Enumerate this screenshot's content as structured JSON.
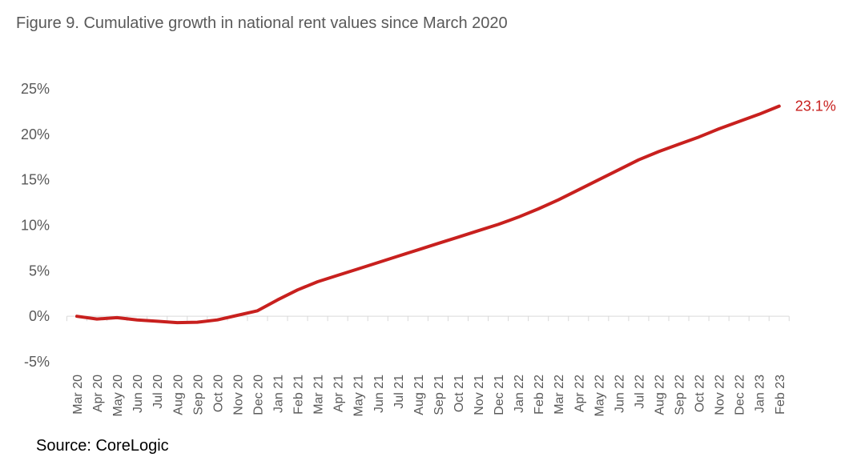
{
  "chart_data": {
    "type": "line",
    "title": "Figure 9. Cumulative growth in national rent values since March 2020",
    "source": "Source: CoreLogic",
    "xlabel": "",
    "ylabel": "",
    "ylim": [
      -5,
      25
    ],
    "yticks": [
      "-5%",
      "0%",
      "5%",
      "10%",
      "15%",
      "20%",
      "25%"
    ],
    "grid": false,
    "line_color": "#C8201E",
    "categories": [
      "Mar 20",
      "Apr 20",
      "May 20",
      "Jun 20",
      "Jul 20",
      "Aug 20",
      "Sep 20",
      "Oct 20",
      "Nov 20",
      "Dec 20",
      "Jan 21",
      "Feb 21",
      "Mar 21",
      "Apr 21",
      "May 21",
      "Jun 21",
      "Jul 21",
      "Aug 21",
      "Sep 21",
      "Oct 21",
      "Nov 21",
      "Dec 21",
      "Jan 22",
      "Feb 22",
      "Mar 22",
      "Apr 22",
      "May 22",
      "Jun 22",
      "Jul 22",
      "Aug 22",
      "Sep 22",
      "Oct 22",
      "Nov 22",
      "Dec 22",
      "Jan 23",
      "Feb 23"
    ],
    "series": [
      {
        "values": [
          0.0,
          -0.3,
          -0.15,
          -0.4,
          -0.55,
          -0.7,
          -0.65,
          -0.4,
          0.1,
          0.6,
          1.8,
          2.9,
          3.8,
          4.5,
          5.2,
          5.9,
          6.6,
          7.3,
          8.0,
          8.7,
          9.4,
          10.1,
          10.9,
          11.8,
          12.8,
          13.9,
          15.0,
          16.1,
          17.2,
          18.1,
          18.9,
          19.7,
          20.6,
          21.4,
          22.2,
          23.1
        ],
        "end_label": "23.1%"
      }
    ]
  }
}
